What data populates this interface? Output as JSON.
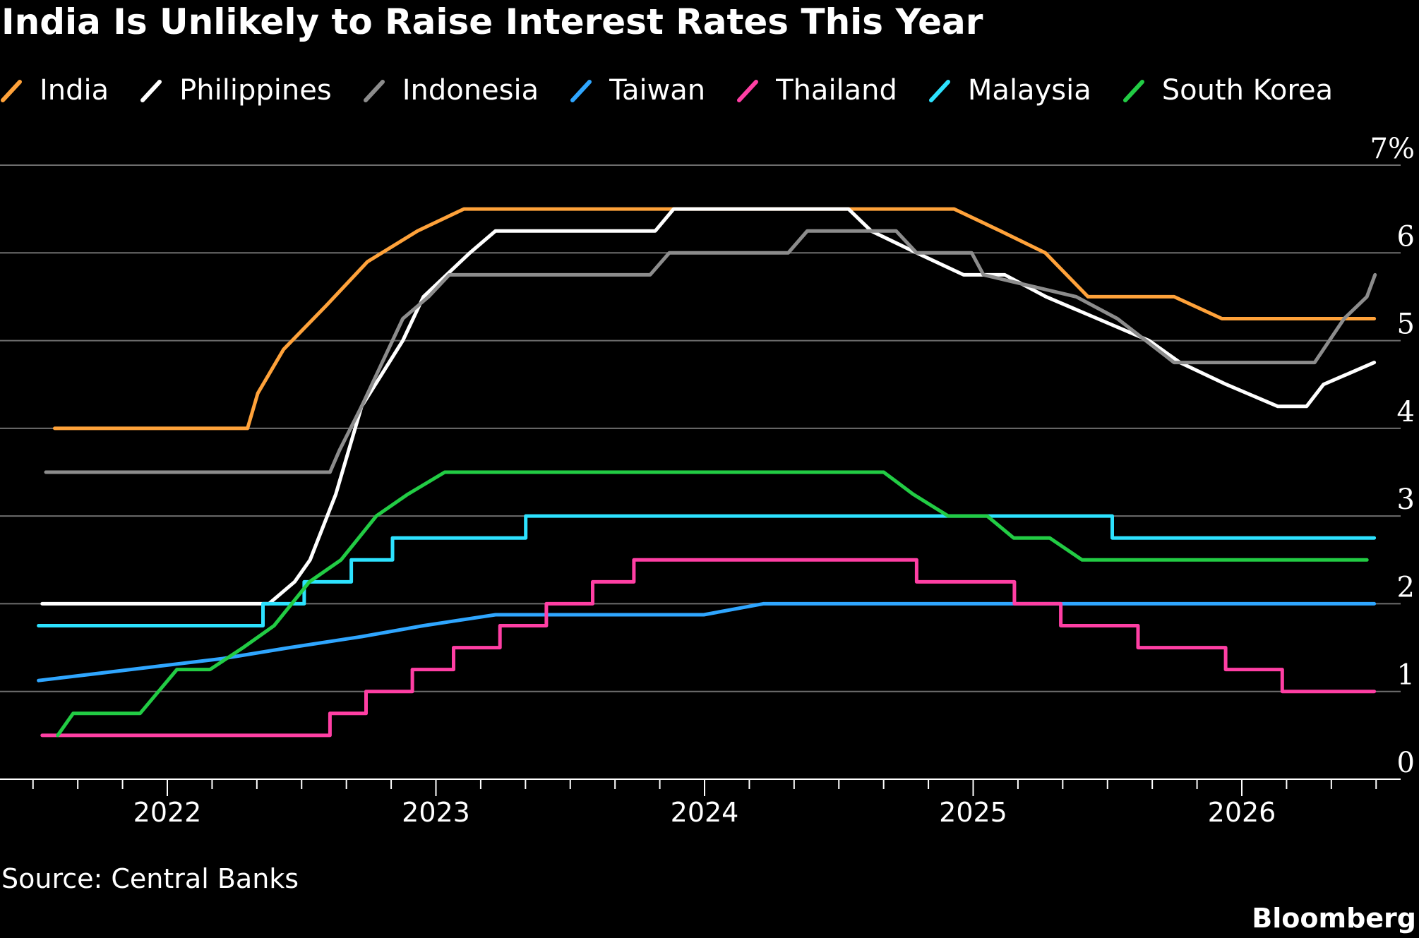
{
  "chart_data": {
    "type": "line",
    "title": "India Is Unlikely to Raise Interest Rates This Year",
    "source": "Source: Central Banks",
    "brand": "Bloomberg",
    "x_ticks": [
      "2022",
      "2023",
      "2024",
      "2025",
      "2026"
    ],
    "y_ticks": [
      "0",
      "1",
      "2",
      "3",
      "4",
      "5",
      "6",
      "7%"
    ],
    "ylim": [
      0,
      7
    ],
    "xlim": [
      "2021-07-01",
      "2026-08-01"
    ],
    "grid": true,
    "step": true,
    "series": [
      {
        "name": "India",
        "color": "#ffa23a",
        "points": [
          [
            "2021-08-01",
            4.0
          ],
          [
            "2022-04-20",
            4.0
          ],
          [
            "2022-05-04",
            4.4
          ],
          [
            "2022-06-08",
            4.9
          ],
          [
            "2022-08-05",
            5.4
          ],
          [
            "2022-09-30",
            5.9
          ],
          [
            "2022-12-07",
            6.25
          ],
          [
            "2023-02-08",
            6.5
          ],
          [
            "2024-12-06",
            6.5
          ],
          [
            "2025-02-07",
            6.25
          ],
          [
            "2025-04-09",
            6.0
          ],
          [
            "2025-06-06",
            5.5
          ],
          [
            "2025-10-01",
            5.5
          ],
          [
            "2025-12-05",
            5.25
          ],
          [
            "2026-06-30",
            5.25
          ]
        ]
      },
      {
        "name": "Philippines",
        "color": "#ffffff",
        "points": [
          [
            "2021-07-15",
            2.0
          ],
          [
            "2022-05-19",
            2.0
          ],
          [
            "2022-06-23",
            2.25
          ],
          [
            "2022-07-14",
            2.5
          ],
          [
            "2022-08-18",
            3.25
          ],
          [
            "2022-09-22",
            4.25
          ],
          [
            "2022-11-17",
            5.0
          ],
          [
            "2022-12-15",
            5.5
          ],
          [
            "2023-02-16",
            6.0
          ],
          [
            "2023-03-23",
            6.25
          ],
          [
            "2023-10-26",
            6.25
          ],
          [
            "2023-11-20",
            6.5
          ],
          [
            "2024-07-15",
            6.5
          ],
          [
            "2024-08-15",
            6.25
          ],
          [
            "2024-10-16",
            6.0
          ],
          [
            "2024-12-19",
            5.75
          ],
          [
            "2025-02-13",
            5.75
          ],
          [
            "2025-04-10",
            5.5
          ],
          [
            "2025-06-19",
            5.25
          ],
          [
            "2025-08-28",
            5.0
          ],
          [
            "2025-10-09",
            4.75
          ],
          [
            "2025-12-11",
            4.5
          ],
          [
            "2026-02-19",
            4.25
          ],
          [
            "2026-03-30",
            4.25
          ],
          [
            "2026-04-22",
            4.5
          ],
          [
            "2026-06-30",
            4.75
          ]
        ]
      },
      {
        "name": "Indonesia",
        "color": "#8c8c8c",
        "points": [
          [
            "2021-07-20",
            3.5
          ],
          [
            "2022-08-10",
            3.5
          ],
          [
            "2022-08-23",
            3.75
          ],
          [
            "2022-09-22",
            4.25
          ],
          [
            "2022-10-20",
            4.75
          ],
          [
            "2022-11-17",
            5.25
          ],
          [
            "2022-12-22",
            5.5
          ],
          [
            "2023-01-19",
            5.75
          ],
          [
            "2023-10-19",
            5.75
          ],
          [
            "2023-11-14",
            6.0
          ],
          [
            "2024-04-24",
            6.0
          ],
          [
            "2024-05-20",
            6.25
          ],
          [
            "2024-09-18",
            6.25
          ],
          [
            "2024-10-16",
            6.0
          ],
          [
            "2024-12-30",
            6.0
          ],
          [
            "2025-01-15",
            5.75
          ],
          [
            "2025-05-21",
            5.5
          ],
          [
            "2025-07-16",
            5.25
          ],
          [
            "2025-10-01",
            4.75
          ],
          [
            "2026-04-10",
            4.75
          ],
          [
            "2026-05-20",
            5.25
          ],
          [
            "2026-06-20",
            5.5
          ],
          [
            "2026-07-01",
            5.75
          ]
        ]
      },
      {
        "name": "Taiwan",
        "color": "#2fa6ff",
        "points": [
          [
            "2021-07-10",
            1.125
          ],
          [
            "2022-03-17",
            1.375
          ],
          [
            "2022-06-16",
            1.5
          ],
          [
            "2022-09-22",
            1.625
          ],
          [
            "2022-12-15",
            1.75
          ],
          [
            "2023-03-23",
            1.875
          ],
          [
            "2023-12-31",
            1.875
          ],
          [
            "2024-03-21",
            2.0
          ],
          [
            "2026-06-30",
            2.0
          ]
        ]
      },
      {
        "name": "Thailand",
        "color": "#ff3fa4",
        "points": [
          [
            "2021-07-15",
            0.5
          ],
          [
            "2022-08-10",
            0.5
          ],
          [
            "2022-08-10",
            0.75
          ],
          [
            "2022-09-28",
            0.75
          ],
          [
            "2022-09-28",
            1.0
          ],
          [
            "2022-11-30",
            1.0
          ],
          [
            "2022-11-30",
            1.25
          ],
          [
            "2023-01-25",
            1.25
          ],
          [
            "2023-01-25",
            1.5
          ],
          [
            "2023-03-29",
            1.5
          ],
          [
            "2023-03-29",
            1.75
          ],
          [
            "2023-05-31",
            1.75
          ],
          [
            "2023-05-31",
            2.0
          ],
          [
            "2023-08-02",
            2.0
          ],
          [
            "2023-08-02",
            2.25
          ],
          [
            "2023-09-27",
            2.25
          ],
          [
            "2023-09-27",
            2.5
          ],
          [
            "2024-10-16",
            2.5
          ],
          [
            "2024-10-16",
            2.25
          ],
          [
            "2025-02-26",
            2.25
          ],
          [
            "2025-02-26",
            2.0
          ],
          [
            "2025-04-30",
            2.0
          ],
          [
            "2025-04-30",
            1.75
          ],
          [
            "2025-08-13",
            1.75
          ],
          [
            "2025-08-13",
            1.5
          ],
          [
            "2025-12-10",
            1.5
          ],
          [
            "2025-12-10",
            1.25
          ],
          [
            "2026-02-25",
            1.25
          ],
          [
            "2026-02-25",
            1.0
          ],
          [
            "2026-06-30",
            1.0
          ]
        ]
      },
      {
        "name": "Malaysia",
        "color": "#2de2ff",
        "points": [
          [
            "2021-07-10",
            1.75
          ],
          [
            "2022-05-11",
            1.75
          ],
          [
            "2022-05-11",
            2.0
          ],
          [
            "2022-07-06",
            2.0
          ],
          [
            "2022-07-06",
            2.25
          ],
          [
            "2022-09-08",
            2.25
          ],
          [
            "2022-09-08",
            2.5
          ],
          [
            "2022-11-03",
            2.5
          ],
          [
            "2022-11-03",
            2.75
          ],
          [
            "2023-05-03",
            2.75
          ],
          [
            "2023-05-03",
            3.0
          ],
          [
            "2025-07-09",
            3.0
          ],
          [
            "2025-07-09",
            2.75
          ],
          [
            "2026-06-30",
            2.75
          ]
        ]
      },
      {
        "name": "South Korea",
        "color": "#22cc44",
        "points": [
          [
            "2021-08-05",
            0.5
          ],
          [
            "2021-08-26",
            0.75
          ],
          [
            "2021-11-25",
            0.75
          ],
          [
            "2022-01-14",
            1.25
          ],
          [
            "2022-02-28",
            1.25
          ],
          [
            "2022-04-14",
            1.5
          ],
          [
            "2022-05-26",
            1.75
          ],
          [
            "2022-07-13",
            2.25
          ],
          [
            "2022-08-25",
            2.5
          ],
          [
            "2022-10-12",
            3.0
          ],
          [
            "2022-11-24",
            3.25
          ],
          [
            "2023-01-13",
            3.5
          ],
          [
            "2024-09-01",
            3.5
          ],
          [
            "2024-10-11",
            3.25
          ],
          [
            "2024-11-28",
            3.0
          ],
          [
            "2025-01-20",
            3.0
          ],
          [
            "2025-02-25",
            2.75
          ],
          [
            "2025-04-15",
            2.75
          ],
          [
            "2025-05-29",
            2.5
          ],
          [
            "2026-06-20",
            2.5
          ]
        ]
      }
    ]
  }
}
